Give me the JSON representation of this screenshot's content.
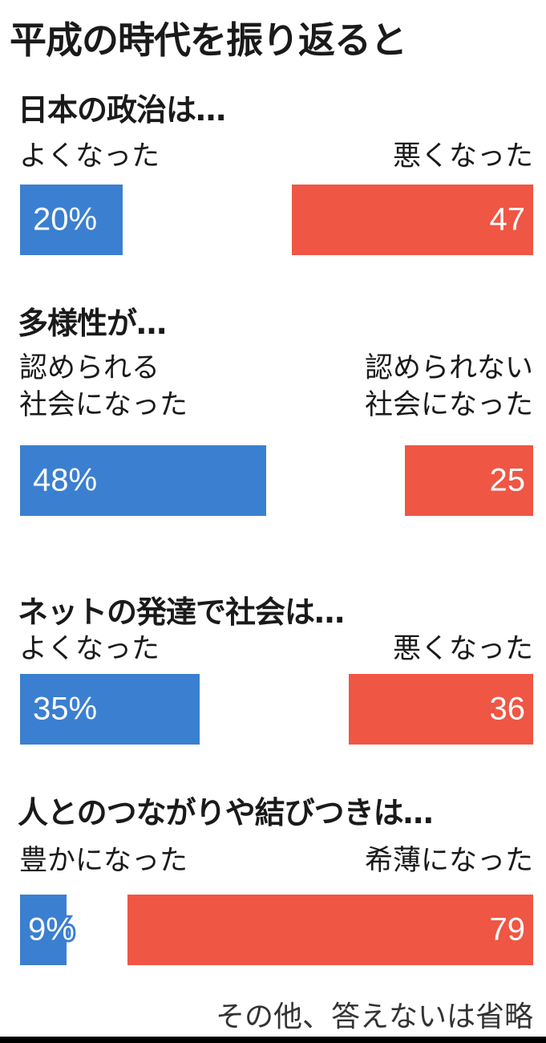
{
  "chart_data": {
    "type": "bar",
    "title": "平成の時代を振り返ると",
    "note": "その他、答えないは省略",
    "colors": {
      "positive": "#3b7fd0",
      "negative": "#ef5644"
    },
    "xlim": [
      0,
      100
    ],
    "items": [
      {
        "question": "日本の政治は…",
        "left_label": [
          "よくなった"
        ],
        "right_label": [
          "悪くなった"
        ],
        "left_value": 20,
        "right_value": 47,
        "left_text": "20%",
        "right_text": "47"
      },
      {
        "question": "多様性が…",
        "left_label": [
          "認められる",
          "社会になった"
        ],
        "right_label": [
          "認められない",
          "社会になった"
        ],
        "left_value": 48,
        "right_value": 25,
        "left_text": "48%",
        "right_text": "25"
      },
      {
        "question": "ネットの発達で社会は…",
        "left_label": [
          "よくなった"
        ],
        "right_label": [
          "悪くなった"
        ],
        "left_value": 35,
        "right_value": 36,
        "left_text": "35%",
        "right_text": "36"
      },
      {
        "question": "人とのつながりや結びつきは…",
        "left_label": [
          "豊かになった"
        ],
        "right_label": [
          "希薄になった"
        ],
        "left_value": 9,
        "right_value": 79,
        "left_text": "9%",
        "right_text": "79"
      }
    ]
  }
}
